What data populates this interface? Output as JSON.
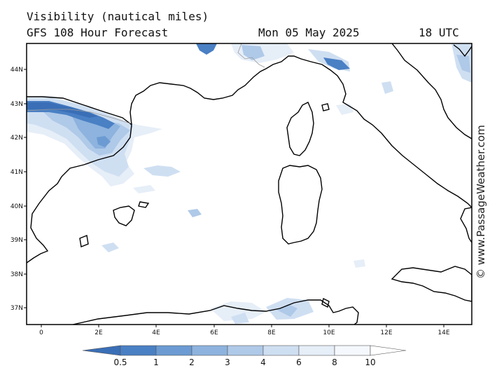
{
  "header": {
    "title": "Visibility (nautical miles)",
    "subtitle": "GFS 108 Hour Forecast",
    "date": "Mon 05 May 2025",
    "time": "18 UTC"
  },
  "map": {
    "lon_labels": [
      "0",
      "2E",
      "4E",
      "6E",
      "8E",
      "10E",
      "12E",
      "14E"
    ],
    "lat_labels": [
      "44N",
      "43N",
      "42N",
      "41N",
      "40N",
      "39N",
      "38N",
      "37N"
    ],
    "coast_color": "#000000"
  },
  "colorbar": {
    "labels": [
      "0.5",
      "1",
      "2",
      "3",
      "4",
      "6",
      "8",
      "10"
    ],
    "colors": [
      "#3a6fb7",
      "#4a80c4",
      "#6b9bd2",
      "#8db3de",
      "#afc9e8",
      "#cfdff2",
      "#e6eef8",
      "#f5f8fc",
      "#ffffff"
    ]
  },
  "credit": "© www.PassageWeather.com"
}
